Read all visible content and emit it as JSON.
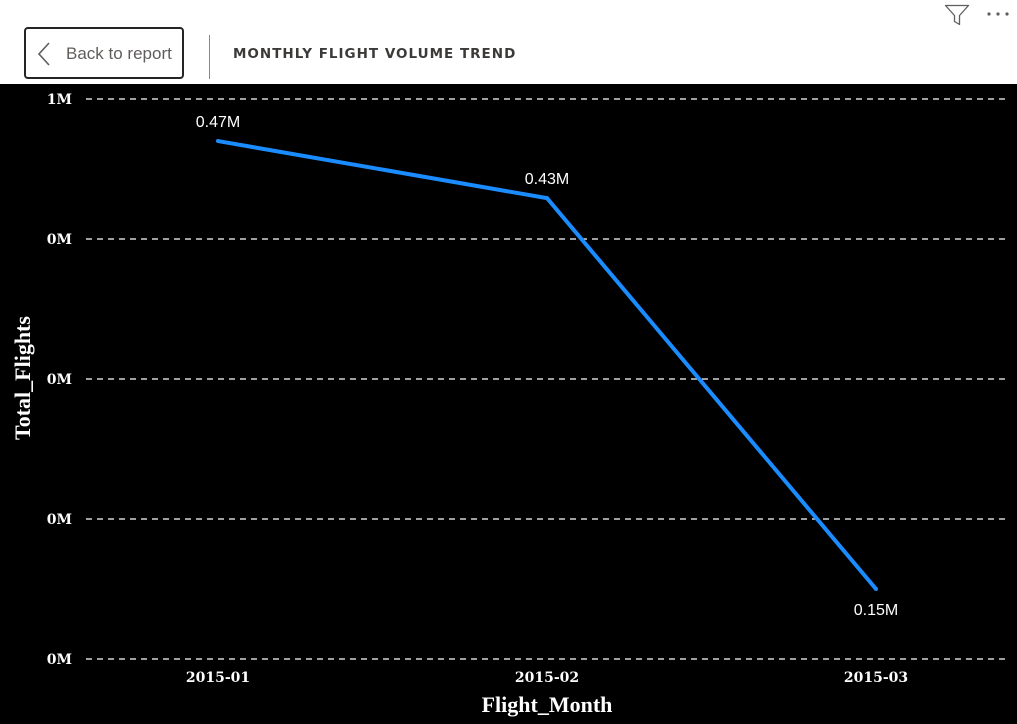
{
  "header": {
    "back_label": "Back to report",
    "title": "MONTHLY FLIGHT VOLUME TREND",
    "icons": [
      "chevron-left-icon",
      "filter-icon",
      "more-options-icon"
    ]
  },
  "colors": {
    "line": "#1a8cff",
    "background": "#000000",
    "text": "#ffffff"
  },
  "chart_data": {
    "type": "line",
    "title": "",
    "xlabel": "Flight_Month",
    "ylabel": "Total_Flights",
    "categories": [
      "2015-01",
      "2015-02",
      "2015-03"
    ],
    "series": [
      {
        "values": [
          469968,
          429191,
          150000
        ],
        "labels": [
          "0.47M",
          "0.43M",
          "0.15M"
        ]
      }
    ],
    "yticks": [
      "0M",
      "0M",
      "0M",
      "0M",
      "1M"
    ],
    "ylim": [
      100000,
      500000
    ],
    "grid": true,
    "legend": "none"
  }
}
